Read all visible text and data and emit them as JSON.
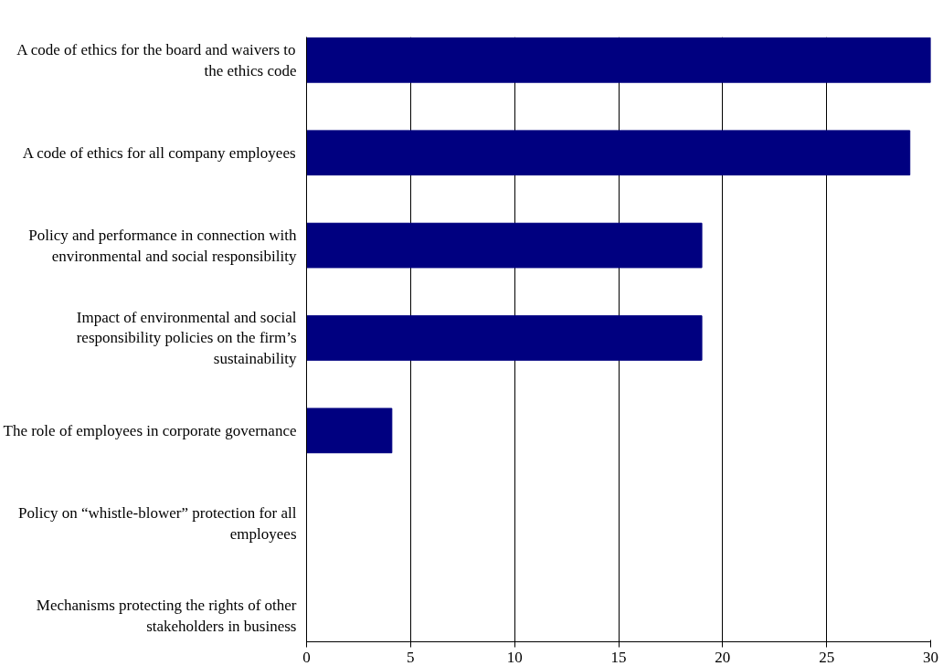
{
  "chart_data": {
    "type": "bar",
    "orientation": "horizontal",
    "categories": [
      "A code of ethics for the board and waivers to the ethics code",
      "A code of ethics for all company employees",
      "Policy and performance in connection with environmental and social responsibility",
      "Impact of environmental and social responsibility policies on the firm’s sustainability",
      "The role of employees in corporate governance",
      "Policy on “whistle-blower” protection for all employees",
      "Mechanisms protecting the rights of other stakeholders in business"
    ],
    "values": [
      30,
      29,
      19,
      19,
      4.1,
      0,
      0
    ],
    "color": "#000080",
    "xlim": [
      0,
      30
    ],
    "xticks": [
      0,
      5,
      10,
      15,
      20,
      25,
      30
    ],
    "grid": "x"
  }
}
